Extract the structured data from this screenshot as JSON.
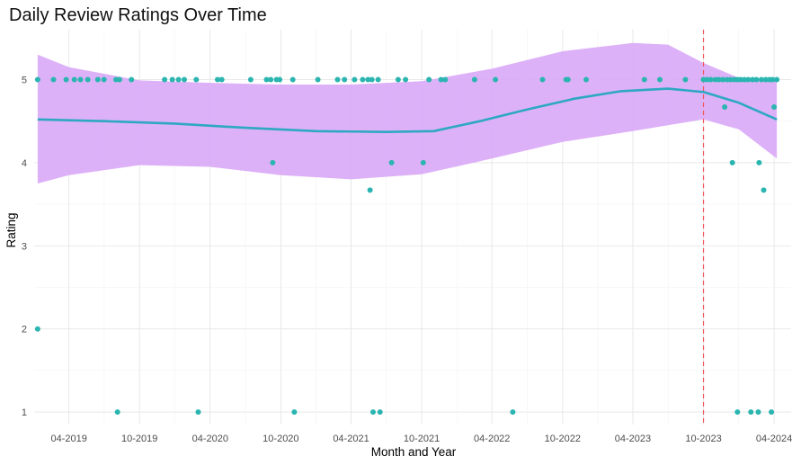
{
  "chart_data": {
    "type": "scatter",
    "title": "Daily Review Ratings Over Time",
    "xlabel": "Month and Year",
    "ylabel": "Rating",
    "xlim": [
      "2019-01-01",
      "2024-05-15"
    ],
    "ylim": [
      0.85,
      5.6
    ],
    "x_ticks": [
      "2019-04-01",
      "2019-10-01",
      "2020-04-01",
      "2020-10-01",
      "2021-04-01",
      "2021-10-01",
      "2022-04-01",
      "2022-10-01",
      "2023-04-01",
      "2023-10-01",
      "2024-04-01"
    ],
    "x_tick_labels": [
      "04-2019",
      "10-2019",
      "04-2020",
      "10-2020",
      "04-2021",
      "10-2021",
      "04-2022",
      "10-2022",
      "04-2023",
      "10-2023",
      "04-2024"
    ],
    "y_ticks": [
      1,
      2,
      3,
      4,
      5
    ],
    "y_tick_labels": [
      "1",
      "2",
      "3",
      "4",
      "5"
    ],
    "grid": true,
    "colors": {
      "points": "#2bb5b0",
      "smooth_line": "#2ea8c2",
      "confidence_band": "#d9a8f7",
      "reference_line": "#f0555a"
    },
    "vertical_reference_line": {
      "x": "2023-10-01",
      "style": "dashed"
    },
    "points": [
      {
        "x": "2019-01-10",
        "y": 5
      },
      {
        "x": "2019-01-10",
        "y": 2
      },
      {
        "x": "2019-02-20",
        "y": 5
      },
      {
        "x": "2019-03-25",
        "y": 5
      },
      {
        "x": "2019-04-15",
        "y": 5
      },
      {
        "x": "2019-05-01",
        "y": 5
      },
      {
        "x": "2019-05-20",
        "y": 5
      },
      {
        "x": "2019-06-15",
        "y": 5
      },
      {
        "x": "2019-07-01",
        "y": 5
      },
      {
        "x": "2019-08-01",
        "y": 5
      },
      {
        "x": "2019-08-10",
        "y": 5
      },
      {
        "x": "2019-08-05",
        "y": 1
      },
      {
        "x": "2019-09-10",
        "y": 5
      },
      {
        "x": "2019-12-05",
        "y": 5
      },
      {
        "x": "2019-12-25",
        "y": 5
      },
      {
        "x": "2020-01-10",
        "y": 5
      },
      {
        "x": "2020-01-25",
        "y": 5
      },
      {
        "x": "2020-02-25",
        "y": 5
      },
      {
        "x": "2020-03-01",
        "y": 1
      },
      {
        "x": "2020-04-20",
        "y": 5
      },
      {
        "x": "2020-05-01",
        "y": 5
      },
      {
        "x": "2020-07-15",
        "y": 5
      },
      {
        "x": "2020-08-25",
        "y": 5
      },
      {
        "x": "2020-09-05",
        "y": 5
      },
      {
        "x": "2020-09-10",
        "y": 4
      },
      {
        "x": "2020-09-20",
        "y": 5
      },
      {
        "x": "2020-09-28",
        "y": 5
      },
      {
        "x": "2020-11-01",
        "y": 5
      },
      {
        "x": "2020-11-05",
        "y": 1
      },
      {
        "x": "2021-01-05",
        "y": 5
      },
      {
        "x": "2021-02-25",
        "y": 5
      },
      {
        "x": "2021-03-15",
        "y": 5
      },
      {
        "x": "2021-04-10",
        "y": 5
      },
      {
        "x": "2021-05-01",
        "y": 5
      },
      {
        "x": "2021-05-15",
        "y": 5
      },
      {
        "x": "2021-05-20",
        "y": 3.67
      },
      {
        "x": "2021-05-25",
        "y": 5
      },
      {
        "x": "2021-05-28",
        "y": 1
      },
      {
        "x": "2021-06-10",
        "y": 5
      },
      {
        "x": "2021-06-15",
        "y": 1
      },
      {
        "x": "2021-07-15",
        "y": 4
      },
      {
        "x": "2021-08-01",
        "y": 5
      },
      {
        "x": "2021-08-20",
        "y": 5
      },
      {
        "x": "2021-10-05",
        "y": 4
      },
      {
        "x": "2021-10-20",
        "y": 5
      },
      {
        "x": "2021-11-20",
        "y": 5
      },
      {
        "x": "2021-12-01",
        "y": 5
      },
      {
        "x": "2022-02-15",
        "y": 5
      },
      {
        "x": "2022-04-10",
        "y": 5
      },
      {
        "x": "2022-05-25",
        "y": 1
      },
      {
        "x": "2022-08-10",
        "y": 5
      },
      {
        "x": "2022-10-10",
        "y": 5
      },
      {
        "x": "2022-10-15",
        "y": 5
      },
      {
        "x": "2022-12-01",
        "y": 5
      },
      {
        "x": "2023-05-01",
        "y": 5
      },
      {
        "x": "2023-06-10",
        "y": 5
      },
      {
        "x": "2023-08-15",
        "y": 5
      },
      {
        "x": "2023-10-01",
        "y": 5
      },
      {
        "x": "2023-10-10",
        "y": 5
      },
      {
        "x": "2023-10-20",
        "y": 5
      },
      {
        "x": "2023-11-01",
        "y": 5
      },
      {
        "x": "2023-11-10",
        "y": 5
      },
      {
        "x": "2023-11-20",
        "y": 5
      },
      {
        "x": "2023-11-25",
        "y": 4.67
      },
      {
        "x": "2023-12-01",
        "y": 5
      },
      {
        "x": "2023-12-10",
        "y": 5
      },
      {
        "x": "2023-12-15",
        "y": 4
      },
      {
        "x": "2023-12-20",
        "y": 5
      },
      {
        "x": "2023-12-28",
        "y": 5
      },
      {
        "x": "2023-12-28",
        "y": 1
      },
      {
        "x": "2024-01-05",
        "y": 5
      },
      {
        "x": "2024-01-15",
        "y": 5
      },
      {
        "x": "2024-01-25",
        "y": 5
      },
      {
        "x": "2024-02-01",
        "y": 1
      },
      {
        "x": "2024-02-05",
        "y": 5
      },
      {
        "x": "2024-02-15",
        "y": 5
      },
      {
        "x": "2024-02-20",
        "y": 1
      },
      {
        "x": "2024-02-22",
        "y": 4
      },
      {
        "x": "2024-02-28",
        "y": 5
      },
      {
        "x": "2024-03-05",
        "y": 3.67
      },
      {
        "x": "2024-03-10",
        "y": 5
      },
      {
        "x": "2024-03-20",
        "y": 5
      },
      {
        "x": "2024-03-25",
        "y": 1
      },
      {
        "x": "2024-03-28",
        "y": 5
      },
      {
        "x": "2024-04-01",
        "y": 4.67
      },
      {
        "x": "2024-04-08",
        "y": 5
      }
    ],
    "smooth_line": [
      {
        "x": "2019-01-10",
        "y": 4.52
      },
      {
        "x": "2019-07-01",
        "y": 4.5
      },
      {
        "x": "2020-01-01",
        "y": 4.47
      },
      {
        "x": "2020-07-01",
        "y": 4.42
      },
      {
        "x": "2021-01-01",
        "y": 4.38
      },
      {
        "x": "2021-07-01",
        "y": 4.37
      },
      {
        "x": "2021-11-01",
        "y": 4.38
      },
      {
        "x": "2022-03-01",
        "y": 4.5
      },
      {
        "x": "2022-07-01",
        "y": 4.64
      },
      {
        "x": "2022-11-01",
        "y": 4.77
      },
      {
        "x": "2023-03-01",
        "y": 4.86
      },
      {
        "x": "2023-07-01",
        "y": 4.89
      },
      {
        "x": "2023-10-01",
        "y": 4.85
      },
      {
        "x": "2024-01-01",
        "y": 4.72
      },
      {
        "x": "2024-04-08",
        "y": 4.52
      }
    ],
    "band_upper": [
      {
        "x": "2019-01-10",
        "y": 5.3
      },
      {
        "x": "2019-04-01",
        "y": 5.15
      },
      {
        "x": "2019-10-01",
        "y": 4.99
      },
      {
        "x": "2020-04-01",
        "y": 4.96
      },
      {
        "x": "2020-10-01",
        "y": 4.94
      },
      {
        "x": "2021-04-01",
        "y": 4.94
      },
      {
        "x": "2021-10-01",
        "y": 4.98
      },
      {
        "x": "2022-04-01",
        "y": 5.13
      },
      {
        "x": "2022-10-01",
        "y": 5.34
      },
      {
        "x": "2023-04-01",
        "y": 5.44
      },
      {
        "x": "2023-07-01",
        "y": 5.42
      },
      {
        "x": "2023-10-01",
        "y": 5.2
      },
      {
        "x": "2024-01-01",
        "y": 5.02
      },
      {
        "x": "2024-04-08",
        "y": 5.0
      }
    ],
    "band_lower": [
      {
        "x": "2019-01-10",
        "y": 3.75
      },
      {
        "x": "2019-04-01",
        "y": 3.85
      },
      {
        "x": "2019-10-01",
        "y": 3.97
      },
      {
        "x": "2020-04-01",
        "y": 3.95
      },
      {
        "x": "2020-10-01",
        "y": 3.85
      },
      {
        "x": "2021-04-01",
        "y": 3.8
      },
      {
        "x": "2021-10-01",
        "y": 3.86
      },
      {
        "x": "2022-04-01",
        "y": 4.05
      },
      {
        "x": "2022-10-01",
        "y": 4.25
      },
      {
        "x": "2023-04-01",
        "y": 4.38
      },
      {
        "x": "2023-07-01",
        "y": 4.45
      },
      {
        "x": "2023-10-01",
        "y": 4.52
      },
      {
        "x": "2024-01-01",
        "y": 4.4
      },
      {
        "x": "2024-04-08",
        "y": 4.05
      }
    ]
  }
}
